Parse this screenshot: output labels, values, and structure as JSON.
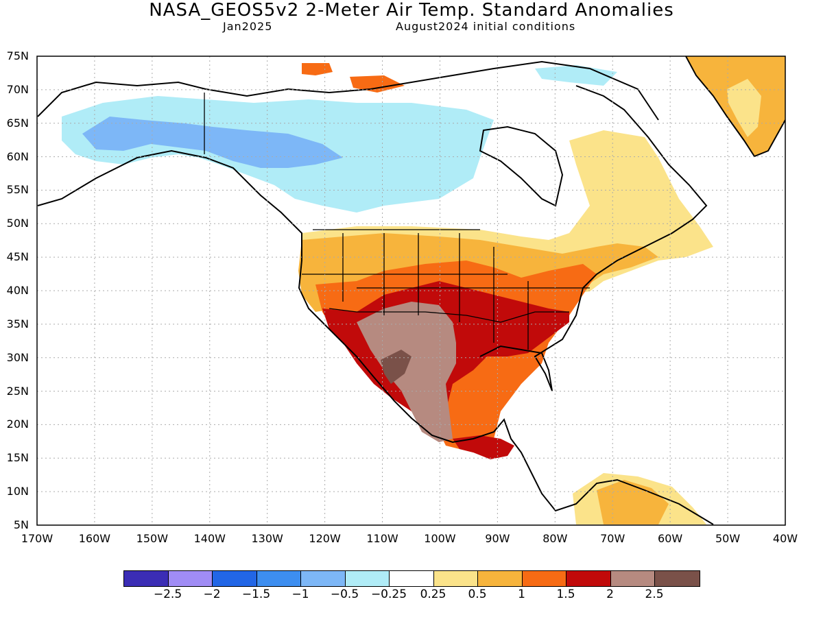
{
  "header": {
    "title": "NASA_GEOS5v2 2-Meter Air Temp. Standard Anomalies",
    "valid_month": "Jan2025",
    "init": "August2024 initial conditions"
  },
  "map": {
    "lon_range": [
      -170,
      -40
    ],
    "lat_range": [
      5,
      75
    ],
    "lat_labels": [
      "75N",
      "70N",
      "65N",
      "60N",
      "55N",
      "50N",
      "45N",
      "40N",
      "35N",
      "30N",
      "25N",
      "20N",
      "15N",
      "10N",
      "5N"
    ],
    "lon_labels": [
      "170W",
      "160W",
      "150W",
      "140W",
      "130W",
      "120W",
      "110W",
      "100W",
      "90W",
      "80W",
      "70W",
      "60W",
      "50W",
      "40W"
    ]
  },
  "colorbar": {
    "colors": [
      "#3b2db5",
      "#a08cf5",
      "#2266e6",
      "#3d8ef0",
      "#7db7f7",
      "#b0ecf7",
      "#ffffff",
      "#fbe38a",
      "#f7b43c",
      "#f76b14",
      "#c10a0a",
      "#b68a80",
      "#7a5149"
    ],
    "labels": [
      "−2.5",
      "−2",
      "−1.5",
      "−1",
      "−0.5",
      "−0.25",
      "0.25",
      "0.5",
      "1",
      "1.5",
      "2",
      "2.5"
    ]
  }
}
